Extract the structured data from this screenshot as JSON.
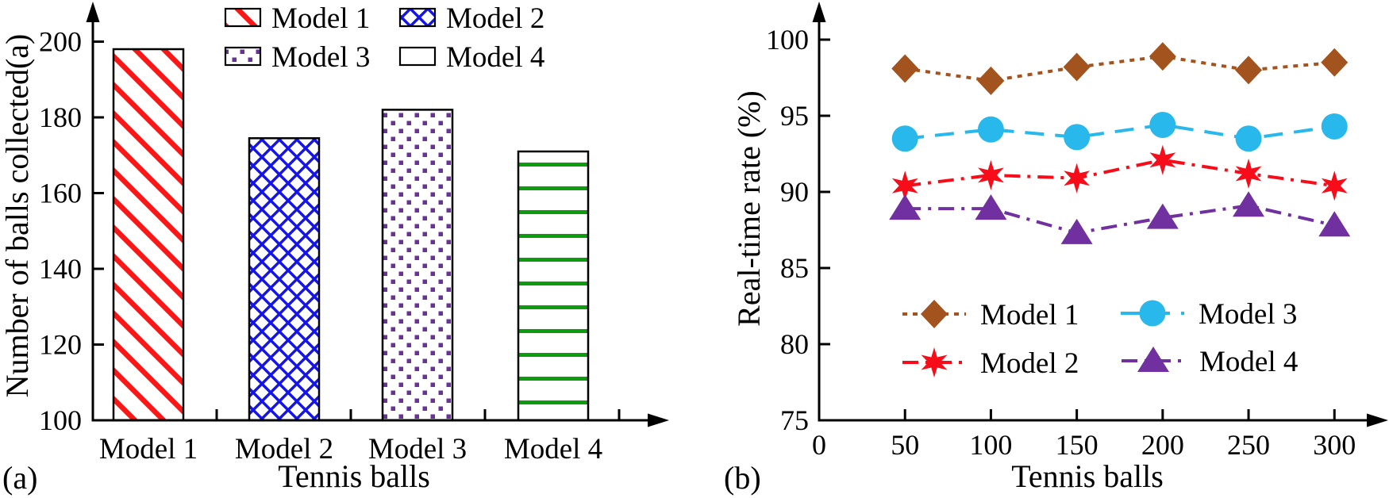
{
  "figure": {
    "background": "#ffffff",
    "panels": [
      {
        "id": "a",
        "label": "(a)"
      },
      {
        "id": "b",
        "label": "(b)"
      }
    ]
  },
  "chart_data": [
    {
      "type": "bar",
      "panel": "(a)",
      "title": "",
      "xlabel": "Tennis balls",
      "ylabel": "Number of balls collected(a)",
      "ylim": [
        100,
        210
      ],
      "yticks": [
        100,
        120,
        140,
        160,
        180,
        200
      ],
      "categories": [
        "Model 1",
        "Model 2",
        "Model 3",
        "Model 4"
      ],
      "values": [
        198,
        174.5,
        182,
        171
      ],
      "grid": false,
      "legend_position": "top two-column, above plot",
      "legend": [
        {
          "label": "Model 1",
          "pattern": "diagonal",
          "color": "#f81818"
        },
        {
          "label": "Model 2",
          "pattern": "cross",
          "color": "#1414e8"
        },
        {
          "label": "Model 3",
          "pattern": "dots",
          "color": "#6b2f9e"
        },
        {
          "label": "Model 4",
          "pattern": "hlines",
          "color": "#0f9b0f"
        }
      ]
    },
    {
      "type": "line",
      "panel": "(b)",
      "title": "",
      "xlabel": "Tennis balls",
      "ylabel": "Real-time rate (%)",
      "xlim": [
        0,
        330
      ],
      "ylim": [
        75,
        102
      ],
      "xticks": [
        0,
        50,
        100,
        150,
        200,
        250,
        300
      ],
      "yticks": [
        75,
        80,
        85,
        90,
        95,
        100
      ],
      "x": [
        50,
        100,
        150,
        200,
        250,
        300
      ],
      "grid": false,
      "legend_position": "inside lower-middle, two-column",
      "series": [
        {
          "name": "Model 1",
          "marker": "diamond",
          "line": "dotted",
          "color": "#a3531d",
          "values": [
            98.1,
            97.3,
            98.2,
            98.9,
            98.0,
            98.5
          ]
        },
        {
          "name": "Model 2",
          "marker": "star",
          "line": "dashdot",
          "color": "#f70d1a",
          "values": [
            90.4,
            91.1,
            90.9,
            92.1,
            91.2,
            90.4
          ]
        },
        {
          "name": "Model 3",
          "marker": "circle",
          "line": "dashed",
          "color": "#29b8ec",
          "values": [
            93.5,
            94.1,
            93.6,
            94.4,
            93.5,
            94.3
          ]
        },
        {
          "name": "Model 4",
          "marker": "triangle",
          "line": "dashdot",
          "color": "#7030a0",
          "values": [
            88.9,
            88.9,
            87.3,
            88.3,
            89.1,
            87.8
          ]
        }
      ]
    }
  ]
}
